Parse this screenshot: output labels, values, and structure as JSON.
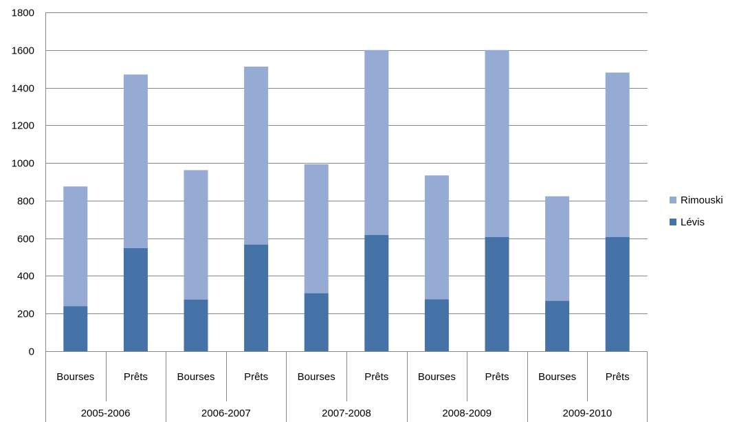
{
  "chart_data": {
    "type": "bar",
    "stacked": true,
    "groups": [
      "2005-2006",
      "2006-2007",
      "2007-2008",
      "2008-2009",
      "2009-2010"
    ],
    "subcategories": [
      "Bourses",
      "Prêts"
    ],
    "series": [
      {
        "name": "Lévis",
        "color": "#4572A7",
        "values": [
          240,
          548,
          275,
          567,
          308,
          618,
          276,
          607,
          268,
          607
        ]
      },
      {
        "name": "Rimouski",
        "color": "#95ABD3",
        "values": [
          635,
          922,
          687,
          945,
          685,
          982,
          658,
          993,
          555,
          873
        ]
      }
    ],
    "y_ticks": [
      0,
      200,
      400,
      600,
      800,
      1000,
      1200,
      1400,
      1600,
      1800
    ],
    "ylim": [
      0,
      1800
    ],
    "grid": true,
    "legend_position": "right",
    "legend_order": [
      "Rimouski",
      "Lévis"
    ]
  }
}
